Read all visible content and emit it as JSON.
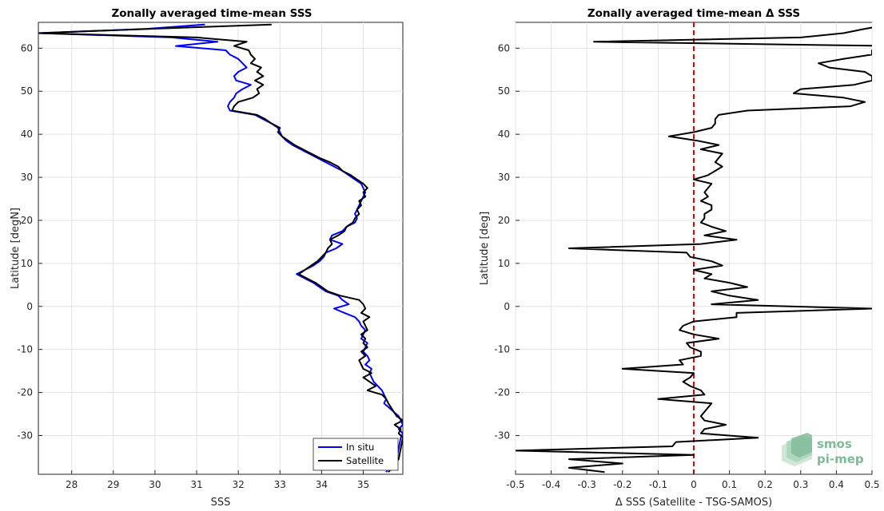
{
  "chart_data": [
    {
      "type": "line",
      "title": "Zonally averaged time-mean SSS",
      "xlabel": "SSS",
      "ylabel": "Latitude [degN]",
      "xlim": [
        27.2,
        35.95
      ],
      "ylim": [
        -39,
        66
      ],
      "xticks": [
        28,
        29,
        30,
        31,
        32,
        33,
        34,
        35
      ],
      "yticks": [
        -30,
        -20,
        -10,
        0,
        10,
        20,
        30,
        40,
        50,
        60
      ],
      "grid": true,
      "legend_position": "bottom-right",
      "series": [
        {
          "name": "In situ",
          "color": "#0000ff",
          "y": [
            65.5,
            64.5,
            63.5,
            62.5,
            61.5,
            60.5,
            59.5,
            58.5,
            57.5,
            56.5,
            55.5,
            54.5,
            53.5,
            52.5,
            51.5,
            50.5,
            49.5,
            48.5,
            47.5,
            46.5,
            45.5,
            44.5,
            43.5,
            42.5,
            41.5,
            40.5,
            39.5,
            38.5,
            37.5,
            36.5,
            35.5,
            34.5,
            33.5,
            32.5,
            31.5,
            30.5,
            29.5,
            28.5,
            27.5,
            26.5,
            25.5,
            24.5,
            23.5,
            22.5,
            21.5,
            20.5,
            19.5,
            18.5,
            17.5,
            16.5,
            15.5,
            14.5,
            13.5,
            12.5,
            11.5,
            10.5,
            9.5,
            8.5,
            7.5,
            6.5,
            5.5,
            4.5,
            3.5,
            2.5,
            1.5,
            0.5,
            -0.5,
            -1.5,
            -2.5,
            -3.5,
            -4.5,
            -5.5,
            -6.5,
            -7.5,
            -8.5,
            -9.5,
            -10.5,
            -11.5,
            -12.5,
            -13.5,
            -14.5,
            -15.5,
            -16.5,
            -17.5,
            -18.5,
            -19.5,
            -20.5,
            -21.5,
            -22.5,
            -25.5,
            -26.5,
            -27.5,
            -28.5,
            -29.5,
            -30.5,
            -35.5,
            -36.5,
            -37.5,
            -38.5
          ],
          "x": [
            31.2,
            29.8,
            27.2,
            30.4,
            31.5,
            30.5,
            31.7,
            31.8,
            32.0,
            32.1,
            32.2,
            32.0,
            31.9,
            31.95,
            32.3,
            32.1,
            31.95,
            31.9,
            31.8,
            31.75,
            31.8,
            32.4,
            32.6,
            32.8,
            32.95,
            33.0,
            33.05,
            33.15,
            33.3,
            33.5,
            33.7,
            33.9,
            34.1,
            34.3,
            34.5,
            34.65,
            34.8,
            34.95,
            35.0,
            35.05,
            35.0,
            34.95,
            34.9,
            34.85,
            34.8,
            34.85,
            34.8,
            34.6,
            34.5,
            34.25,
            34.2,
            34.5,
            34.35,
            34.1,
            34.05,
            33.95,
            33.8,
            33.6,
            33.4,
            33.6,
            33.8,
            33.95,
            34.1,
            34.4,
            34.5,
            34.65,
            34.3,
            34.55,
            34.8,
            34.9,
            34.95,
            35.05,
            35.0,
            34.95,
            35.1,
            35.05,
            35.0,
            35.1,
            35.15,
            35.05,
            35.2,
            35.15,
            35.2,
            35.25,
            35.35,
            35.45,
            35.5,
            35.55,
            35.5,
            35.85,
            35.9,
            35.95,
            35.85,
            35.95,
            35.9,
            35.8,
            35.7,
            35.6,
            35.55
          ]
        },
        {
          "name": "Satellite",
          "color": "#000000",
          "y": [
            65.5,
            64.5,
            63.5,
            62.5,
            61.5,
            60.5,
            59.5,
            58.5,
            57.5,
            56.5,
            55.5,
            54.5,
            53.5,
            52.5,
            51.5,
            50.5,
            49.5,
            48.5,
            47.5,
            46.5,
            45.5,
            44.5,
            43.5,
            42.5,
            41.5,
            40.5,
            39.5,
            38.5,
            37.5,
            36.5,
            35.5,
            34.5,
            33.5,
            32.5,
            31.5,
            30.5,
            29.5,
            28.5,
            27.5,
            26.5,
            25.5,
            24.5,
            23.5,
            22.5,
            21.5,
            20.5,
            19.5,
            18.5,
            17.5,
            16.5,
            15.5,
            14.5,
            13.5,
            12.5,
            11.5,
            10.5,
            9.5,
            8.5,
            7.5,
            6.5,
            5.5,
            4.5,
            3.5,
            2.5,
            1.5,
            0.5,
            -0.5,
            -1.5,
            -2.5,
            -3.5,
            -4.5,
            -5.5,
            -6.5,
            -7.5,
            -8.5,
            -9.5,
            -10.5,
            -11.5,
            -12.5,
            -13.5,
            -14.5,
            -15.5,
            -16.5,
            -17.5,
            -18.5,
            -19.5,
            -20.5,
            -21.5,
            -22.5,
            -25.5,
            -26.5,
            -27.5,
            -28.5,
            -29.5,
            -30.5,
            -35.5,
            -36.5,
            -37.5,
            -38.5
          ],
          "x": [
            32.8,
            29.9,
            27.2,
            31.0,
            32.2,
            31.9,
            32.25,
            32.3,
            32.4,
            32.3,
            32.55,
            32.45,
            32.6,
            32.4,
            32.6,
            32.45,
            32.5,
            32.35,
            32.0,
            31.9,
            31.85,
            32.45,
            32.65,
            32.8,
            33.0,
            32.95,
            33.05,
            33.2,
            33.35,
            33.55,
            33.75,
            33.95,
            34.2,
            34.4,
            34.5,
            34.7,
            34.85,
            35.0,
            35.1,
            35.0,
            35.05,
            34.9,
            34.95,
            34.85,
            34.9,
            34.8,
            34.75,
            34.6,
            34.55,
            34.4,
            34.2,
            34.25,
            34.15,
            34.1,
            34.0,
            33.9,
            33.75,
            33.6,
            33.45,
            33.65,
            33.85,
            34.0,
            34.15,
            34.45,
            34.9,
            35.0,
            35.05,
            34.95,
            35.15,
            35.0,
            35.05,
            35.1,
            34.95,
            35.05,
            35.0,
            35.1,
            34.95,
            35.05,
            34.9,
            34.95,
            35.0,
            35.2,
            35.0,
            35.15,
            35.3,
            35.1,
            35.45,
            35.55,
            35.6,
            35.8,
            35.95,
            35.75,
            35.9,
            35.85,
            35.95,
            35.85,
            35.75,
            35.7,
            35.6
          ]
        }
      ]
    },
    {
      "type": "line",
      "title": "Zonally averaged time-mean Δ SSS",
      "xlabel": "Δ SSS (Satellite - TSG-SAMOS)",
      "ylabel": "Latitude [deg]",
      "xlim": [
        -0.5,
        0.5
      ],
      "ylim": [
        -39,
        66
      ],
      "xticks": [
        -0.5,
        -0.4,
        -0.3,
        -0.2,
        -0.1,
        0,
        0.1,
        0.2,
        0.3,
        0.4,
        0.5
      ],
      "yticks": [
        -30,
        -20,
        -10,
        0,
        10,
        20,
        30,
        40,
        50,
        60
      ],
      "grid": true,
      "reference_line": {
        "x": 0,
        "color": "#e00000",
        "style": "dashed"
      },
      "series": [
        {
          "color": "#000000",
          "y": [
            65.5,
            64.5,
            63.5,
            62.5,
            61.5,
            60.5,
            59.5,
            58.5,
            57.5,
            56.5,
            55.5,
            54.5,
            53.5,
            52.5,
            51.5,
            50.5,
            49.5,
            48.5,
            47.5,
            46.5,
            45.5,
            44.5,
            43.5,
            42.5,
            41.5,
            40.5,
            39.5,
            38.5,
            37.5,
            36.5,
            35.5,
            34.5,
            33.5,
            32.5,
            31.5,
            30.5,
            29.5,
            28.5,
            27.5,
            26.5,
            25.5,
            24.5,
            23.5,
            22.5,
            21.5,
            20.5,
            19.5,
            18.5,
            17.5,
            16.5,
            15.5,
            14.5,
            13.5,
            12.5,
            11.5,
            10.5,
            9.5,
            8.5,
            7.5,
            6.5,
            5.5,
            4.5,
            3.5,
            2.5,
            1.5,
            0.5,
            -0.5,
            -1.5,
            -2.5,
            -3.5,
            -4.5,
            -5.5,
            -6.5,
            -7.5,
            -8.5,
            -9.5,
            -10.5,
            -11.5,
            -12.5,
            -13.5,
            -14.5,
            -15.5,
            -16.5,
            -17.5,
            -18.5,
            -19.5,
            -20.5,
            -21.5,
            -22.5,
            -25.5,
            -26.5,
            -27.5,
            -28.5,
            -29.5,
            -30.5,
            -31.5,
            -32.5,
            -33.5,
            -34.5,
            -35.5,
            -36.5,
            -37.5,
            -38.5
          ],
          "x": [
            0.55,
            0.48,
            0.42,
            0.3,
            -0.28,
            0.55,
            0.5,
            0.5,
            0.42,
            0.35,
            0.38,
            0.48,
            0.5,
            0.5,
            0.45,
            0.3,
            0.28,
            0.42,
            0.48,
            0.44,
            0.15,
            0.07,
            0.06,
            0.06,
            0.05,
            0.0,
            -0.07,
            0.01,
            0.07,
            0.02,
            0.08,
            0.07,
            0.06,
            0.08,
            0.06,
            0.04,
            0.0,
            0.05,
            0.04,
            0.03,
            0.04,
            0.02,
            0.05,
            0.05,
            0.03,
            0.03,
            0.02,
            0.05,
            0.09,
            0.03,
            0.12,
            0.02,
            -0.35,
            -0.02,
            -0.01,
            0.05,
            0.08,
            0.0,
            0.05,
            0.03,
            0.1,
            0.15,
            0.05,
            0.1,
            0.18,
            0.05,
            0.5,
            0.12,
            0.12,
            0.0,
            -0.03,
            -0.04,
            0.0,
            0.07,
            -0.02,
            -0.01,
            0.02,
            0.02,
            -0.04,
            -0.03,
            -0.2,
            0.0,
            -0.01,
            -0.03,
            -0.01,
            0.02,
            0.03,
            -0.1,
            0.05,
            0.02,
            0.03,
            0.09,
            0.03,
            0.02,
            0.18,
            -0.05,
            -0.06,
            -0.5,
            0.0,
            -0.35,
            -0.2,
            -0.35,
            -0.25
          ]
        }
      ]
    }
  ],
  "logo": {
    "line1": "smos",
    "line2": "pi-mep",
    "color": "#7fba99"
  }
}
